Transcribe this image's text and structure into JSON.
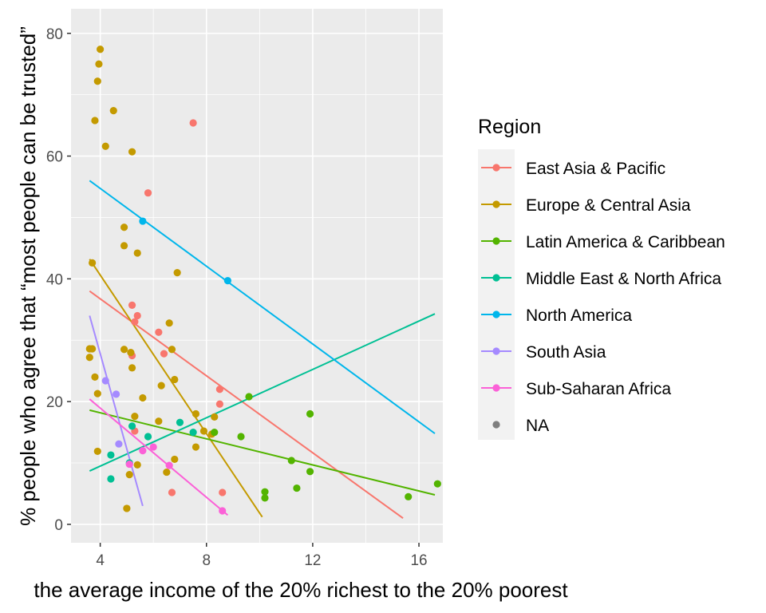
{
  "chart_data": {
    "type": "scatter",
    "title": "",
    "xlabel": "the average income of the 20% richest to the 20% poorest",
    "ylabel": "% people who agree that “most people can be trusted”",
    "xlim": [
      2.9,
      16.9
    ],
    "ylim": [
      -3,
      84
    ],
    "x_ticks": [
      4,
      8,
      12,
      16
    ],
    "y_ticks": [
      0,
      20,
      40,
      60,
      80
    ],
    "x_tick_labels": [
      "4",
      "8",
      "12",
      "16"
    ],
    "y_tick_labels": [
      "0",
      "20",
      "40",
      "60",
      "80"
    ],
    "grid": true,
    "legend_position": "right",
    "legend_title": "Region",
    "series": [
      {
        "name": "East Asia & Pacific",
        "color": "#F8766D",
        "points": [
          [
            7.5,
            65.4
          ],
          [
            5.8,
            54
          ],
          [
            5.2,
            35.7
          ],
          [
            5.4,
            34
          ],
          [
            5.3,
            33
          ],
          [
            6.2,
            31.3
          ],
          [
            6.4,
            27.8
          ],
          [
            5.2,
            27.5
          ],
          [
            8.5,
            22
          ],
          [
            8.5,
            19.6
          ],
          [
            6.7,
            5.2
          ],
          [
            8.6,
            5.2
          ],
          [
            5.3,
            15.2
          ]
        ],
        "fit": [
          [
            3.6,
            38
          ],
          [
            15.4,
            1
          ]
        ]
      },
      {
        "name": "Europe & Central Asia",
        "color": "#C49A00",
        "points": [
          [
            4.0,
            77.4
          ],
          [
            3.95,
            75
          ],
          [
            3.9,
            72.2
          ],
          [
            4.5,
            67.4
          ],
          [
            3.8,
            65.8
          ],
          [
            4.2,
            61.6
          ],
          [
            5.2,
            60.7
          ],
          [
            4.9,
            48.4
          ],
          [
            4.9,
            45.4
          ],
          [
            5.4,
            44.2
          ],
          [
            3.7,
            42.6
          ],
          [
            6.9,
            41
          ],
          [
            6.6,
            32.8
          ],
          [
            3.6,
            28.6
          ],
          [
            3.7,
            28.6
          ],
          [
            4.9,
            28.5
          ],
          [
            6.7,
            28.5
          ],
          [
            5.15,
            28
          ],
          [
            3.6,
            27.2
          ],
          [
            5.2,
            25.5
          ],
          [
            3.8,
            24
          ],
          [
            6.8,
            23.6
          ],
          [
            6.3,
            22.6
          ],
          [
            3.9,
            21.3
          ],
          [
            5.6,
            20.6
          ],
          [
            7.6,
            18
          ],
          [
            5.3,
            17.6
          ],
          [
            6.2,
            16.8
          ],
          [
            8.3,
            17.5
          ],
          [
            7.9,
            15.2
          ],
          [
            8.2,
            14.7
          ],
          [
            7.6,
            12.6
          ],
          [
            3.9,
            11.9
          ],
          [
            6.8,
            10.6
          ],
          [
            5.4,
            9.7
          ],
          [
            6.5,
            8.5
          ],
          [
            5.1,
            8.1
          ],
          [
            5.0,
            2.6
          ]
        ],
        "fit": [
          [
            3.6,
            43.2
          ],
          [
            10.1,
            1.2
          ]
        ]
      },
      {
        "name": "Latin America & Caribbean",
        "color": "#53B400",
        "points": [
          [
            9.6,
            20.8
          ],
          [
            11.9,
            18
          ],
          [
            8.3,
            15
          ],
          [
            9.3,
            14.3
          ],
          [
            11.2,
            10.4
          ],
          [
            11.9,
            8.6
          ],
          [
            11.4,
            5.9
          ],
          [
            10.2,
            5.3
          ],
          [
            10.2,
            4.3
          ],
          [
            15.6,
            4.5
          ],
          [
            16.7,
            6.6
          ]
        ],
        "fit": [
          [
            3.6,
            18.6
          ],
          [
            16.6,
            4.8
          ]
        ]
      },
      {
        "name": "Middle East & North Africa",
        "color": "#00C094",
        "points": [
          [
            7.0,
            16.6
          ],
          [
            5.2,
            16
          ],
          [
            5.8,
            14.3
          ],
          [
            7.5,
            15
          ],
          [
            4.4,
            11.3
          ],
          [
            5.1,
            10
          ],
          [
            4.4,
            7.4
          ]
        ],
        "fit": [
          [
            3.6,
            8.7
          ],
          [
            16.6,
            34.3
          ]
        ]
      },
      {
        "name": "North America",
        "color": "#00B6EB",
        "points": [
          [
            5.6,
            49.4
          ],
          [
            8.8,
            39.7
          ]
        ],
        "fit": [
          [
            3.6,
            56
          ],
          [
            16.6,
            14.8
          ]
        ]
      },
      {
        "name": "South Asia",
        "color": "#A58AFF",
        "points": [
          [
            4.6,
            21.2
          ],
          [
            4.2,
            23.4
          ],
          [
            4.7,
            13.1
          ]
        ],
        "fit": [
          [
            3.6,
            34
          ],
          [
            5.6,
            3
          ]
        ]
      },
      {
        "name": "Sub-Saharan Africa",
        "color": "#FB61D7",
        "points": [
          [
            6.0,
            12.6
          ],
          [
            5.6,
            12
          ],
          [
            6.6,
            9.6
          ],
          [
            5.1,
            9.8
          ],
          [
            8.6,
            2.2
          ]
        ],
        "fit": [
          [
            3.6,
            20.4
          ],
          [
            8.8,
            1.5
          ]
        ]
      },
      {
        "name": "NA",
        "color": "#7F7F7F",
        "points": [],
        "fit": null
      }
    ]
  }
}
